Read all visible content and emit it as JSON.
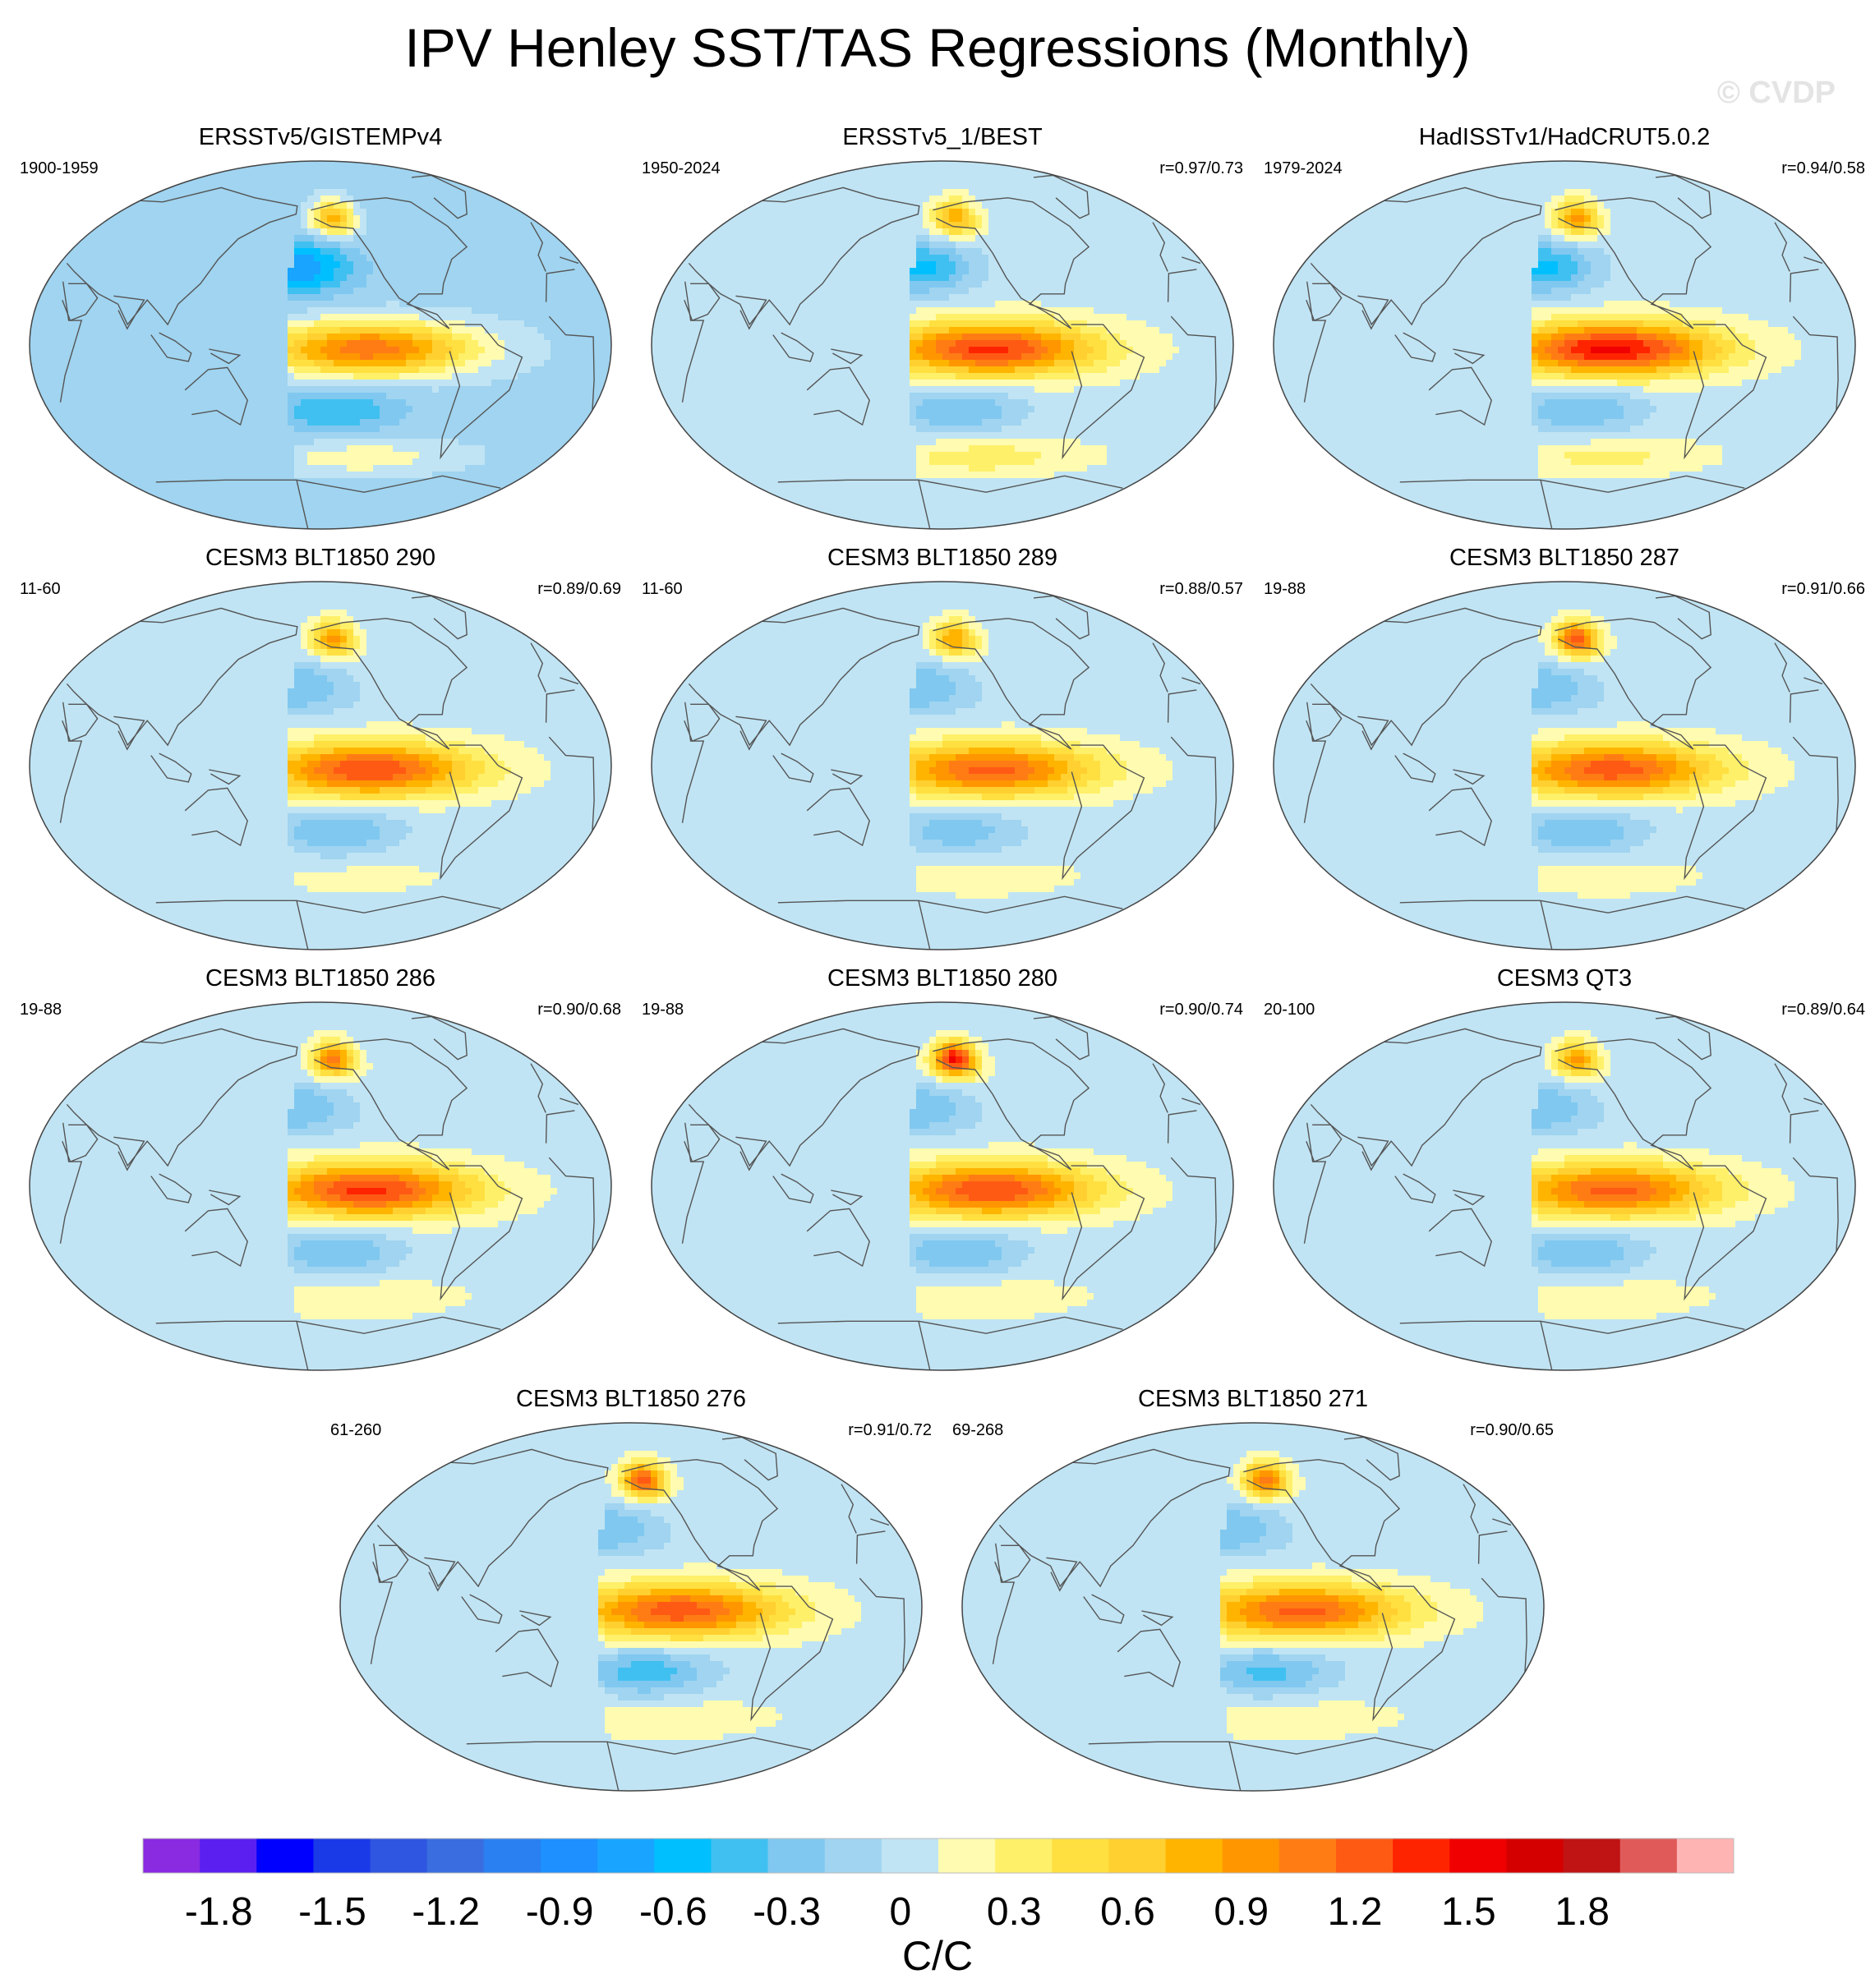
{
  "page": {
    "title": "IPV Henley SST/TAS Regressions (Monthly)",
    "watermark": "© CVDP"
  },
  "colors": {
    "land_outline": "#555555",
    "ellipse_border": "#444444"
  },
  "chart_data": {
    "type": "heatmap",
    "title": "IPV Henley SST/TAS Regressions (Monthly)",
    "projection": "Robinson (global)",
    "units": "C/C",
    "colorbar": {
      "label": "C/C",
      "tick_labels": [
        "-1.8",
        "-1.5",
        "-1.2",
        "-0.9",
        "-0.6",
        "-0.3",
        "0",
        "0.3",
        "0.6",
        "0.9",
        "1.2",
        "1.5",
        "1.8"
      ],
      "tick_values": [
        -1.8,
        -1.5,
        -1.2,
        -0.9,
        -0.6,
        -0.3,
        0,
        0.3,
        0.6,
        0.9,
        1.2,
        1.5,
        1.8
      ],
      "levels_min": -2.0,
      "levels_max": 2.0,
      "level_step": 0.15,
      "colors": [
        "#8a2be2",
        "#5b20f0",
        "#0000ff",
        "#1a3ae8",
        "#2e56e0",
        "#3a6ee0",
        "#2a80f0",
        "#1e90ff",
        "#18a4ff",
        "#00bfff",
        "#40c0f0",
        "#80c8f0",
        "#a0d4f0",
        "#c0e4f4",
        "#fffbb0",
        "#fff06a",
        "#ffe040",
        "#ffd030",
        "#ffb400",
        "#ff9600",
        "#ff7c14",
        "#ff5a14",
        "#ff2400",
        "#f00000",
        "#d40000",
        "#c01414",
        "#e05a5a",
        "#ffb4b4"
      ]
    },
    "panels": [
      {
        "title": "ERSSTv5/GISTEMPv4",
        "years": "1900-1959",
        "corr": "",
        "fields": {
          "tropical_pacific": 1.2,
          "north_pacific": -0.7,
          "south_pacific": -0.4,
          "alaska": 0.9,
          "southern_ocean": 0.3,
          "global_background": -0.1
        }
      },
      {
        "title": "ERSSTv5_1/BEST",
        "years": "1950-2024",
        "corr": "r=0.97/0.73",
        "fields": {
          "tropical_pacific": 1.3,
          "north_pacific": -0.6,
          "south_pacific": -0.4,
          "alaska": 0.8,
          "southern_ocean": 0.3,
          "global_background": 0.05
        }
      },
      {
        "title": "HadISSTv1/HadCRUT5.0.2",
        "years": "1979-2024",
        "corr": "r=0.94/0.58",
        "fields": {
          "tropical_pacific": 1.45,
          "north_pacific": -0.6,
          "south_pacific": -0.4,
          "alaska": 0.85,
          "southern_ocean": 0.25,
          "global_background": 0.05
        }
      },
      {
        "title": "CESM3 BLT1850 290",
        "years": "11-60",
        "corr": "r=0.89/0.69",
        "fields": {
          "tropical_pacific": 1.25,
          "north_pacific": -0.4,
          "south_pacific": -0.4,
          "alaska": 0.85,
          "southern_ocean": 0.1,
          "global_background": 0.05
        }
      },
      {
        "title": "CESM3 BLT1850 289",
        "years": "11-60",
        "corr": "r=0.88/0.57",
        "fields": {
          "tropical_pacific": 1.15,
          "north_pacific": -0.4,
          "south_pacific": -0.35,
          "alaska": 0.8,
          "southern_ocean": 0.15,
          "global_background": 0.05
        }
      },
      {
        "title": "CESM3 BLT1850 287",
        "years": "19-88",
        "corr": "r=0.91/0.66",
        "fields": {
          "tropical_pacific": 1.2,
          "north_pacific": -0.4,
          "south_pacific": -0.4,
          "alaska": 1.2,
          "southern_ocean": 0.15,
          "global_background": 0.05
        }
      },
      {
        "title": "CESM3 BLT1850 286",
        "years": "19-88",
        "corr": "r=0.90/0.68",
        "fields": {
          "tropical_pacific": 1.3,
          "north_pacific": -0.4,
          "south_pacific": -0.4,
          "alaska": 1.0,
          "southern_ocean": 0.2,
          "global_background": 0.05
        }
      },
      {
        "title": "CESM3 BLT1850 280",
        "years": "19-88",
        "corr": "r=0.90/0.74",
        "fields": {
          "tropical_pacific": 1.25,
          "north_pacific": -0.4,
          "south_pacific": -0.4,
          "alaska": 1.45,
          "southern_ocean": 0.2,
          "global_background": 0.05
        }
      },
      {
        "title": "CESM3 QT3",
        "years": "20-100",
        "corr": "r=0.89/0.64",
        "fields": {
          "tropical_pacific": 1.15,
          "north_pacific": -0.4,
          "south_pacific": -0.4,
          "alaska": 0.85,
          "southern_ocean": 0.2,
          "global_background": 0.05
        }
      },
      {
        "title": "CESM3 BLT1850 276",
        "years": "61-260",
        "corr": "r=0.91/0.72",
        "fields": {
          "tropical_pacific": 1.2,
          "north_pacific": -0.4,
          "south_pacific": -0.5,
          "alaska": 1.2,
          "southern_ocean": 0.2,
          "global_background": 0.05
        }
      },
      {
        "title": "CESM3 BLT1850 271",
        "years": "69-268",
        "corr": "r=0.90/0.65",
        "fields": {
          "tropical_pacific": 1.15,
          "north_pacific": -0.4,
          "south_pacific": -0.45,
          "alaska": 1.1,
          "southern_ocean": 0.2,
          "global_background": 0.05
        }
      }
    ]
  }
}
